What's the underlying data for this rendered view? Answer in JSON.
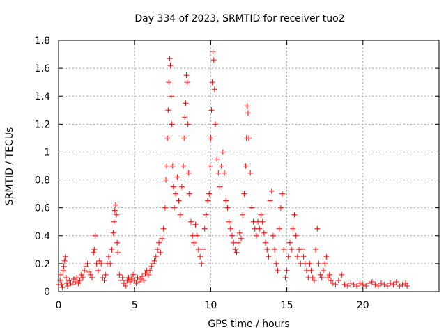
{
  "chart_data": {
    "type": "scatter",
    "title": "Day 334 of 2023, SRMTID for receiver tuo2",
    "xlabel": "GPS time / hours",
    "ylabel": "SRMTID / TECUs",
    "xlim": [
      0,
      25
    ],
    "ylim": [
      0,
      1.8
    ],
    "xticks": [
      0,
      5,
      10,
      15,
      20
    ],
    "xtick_labels": [
      "0",
      "5",
      "10",
      "15",
      "20"
    ],
    "yticks": [
      0,
      0.2,
      0.4,
      0.6,
      0.8,
      1.0,
      1.2,
      1.4,
      1.6,
      1.8
    ],
    "ytick_labels": [
      "0",
      "0.2",
      "0.4",
      "0.6",
      "0.8",
      "1",
      "1.2",
      "1.4",
      "1.6",
      "1.8"
    ],
    "grid": true,
    "marker": "plus",
    "series": [
      {
        "name": "SRMTID",
        "color": "#ff0000",
        "points": [
          [
            0.0,
            0.05
          ],
          [
            0.1,
            0.08
          ],
          [
            0.15,
            0.12
          ],
          [
            0.2,
            0.05
          ],
          [
            0.25,
            0.03
          ],
          [
            0.3,
            0.15
          ],
          [
            0.35,
            0.18
          ],
          [
            0.4,
            0.22
          ],
          [
            0.45,
            0.25
          ],
          [
            0.5,
            0.1
          ],
          [
            0.55,
            0.06
          ],
          [
            0.6,
            0.04
          ],
          [
            0.7,
            0.08
          ],
          [
            0.8,
            0.06
          ],
          [
            0.9,
            0.05
          ],
          [
            1.0,
            0.09
          ],
          [
            1.1,
            0.07
          ],
          [
            1.2,
            0.1
          ],
          [
            1.3,
            0.06
          ],
          [
            1.4,
            0.08
          ],
          [
            1.5,
            0.12
          ],
          [
            1.6,
            0.1
          ],
          [
            1.7,
            0.15
          ],
          [
            1.8,
            0.18
          ],
          [
            1.9,
            0.2
          ],
          [
            2.0,
            0.14
          ],
          [
            2.1,
            0.12
          ],
          [
            2.2,
            0.1
          ],
          [
            2.3,
            0.28
          ],
          [
            2.35,
            0.3
          ],
          [
            2.4,
            0.4
          ],
          [
            2.5,
            0.2
          ],
          [
            2.6,
            0.15
          ],
          [
            2.7,
            0.22
          ],
          [
            2.8,
            0.2
          ],
          [
            2.9,
            0.1
          ],
          [
            3.0,
            0.08
          ],
          [
            3.1,
            0.12
          ],
          [
            3.2,
            0.2
          ],
          [
            3.3,
            0.25
          ],
          [
            3.4,
            0.2
          ],
          [
            3.5,
            0.3
          ],
          [
            3.6,
            0.42
          ],
          [
            3.65,
            0.5
          ],
          [
            3.7,
            0.58
          ],
          [
            3.75,
            0.62
          ],
          [
            3.8,
            0.55
          ],
          [
            3.85,
            0.35
          ],
          [
            3.9,
            0.28
          ],
          [
            4.0,
            0.12
          ],
          [
            4.1,
            0.08
          ],
          [
            4.2,
            0.1
          ],
          [
            4.3,
            0.06
          ],
          [
            4.4,
            0.04
          ],
          [
            4.5,
            0.08
          ],
          [
            4.6,
            0.1
          ],
          [
            4.7,
            0.07
          ],
          [
            4.8,
            0.09
          ],
          [
            4.9,
            0.12
          ],
          [
            5.0,
            0.08
          ],
          [
            5.1,
            0.06
          ],
          [
            5.2,
            0.1
          ],
          [
            5.3,
            0.07
          ],
          [
            5.4,
            0.09
          ],
          [
            5.5,
            0.11
          ],
          [
            5.6,
            0.08
          ],
          [
            5.7,
            0.13
          ],
          [
            5.8,
            0.15
          ],
          [
            5.9,
            0.12
          ],
          [
            6.0,
            0.15
          ],
          [
            6.1,
            0.18
          ],
          [
            6.2,
            0.2
          ],
          [
            6.3,
            0.22
          ],
          [
            6.4,
            0.25
          ],
          [
            6.5,
            0.3
          ],
          [
            6.6,
            0.35
          ],
          [
            6.7,
            0.28
          ],
          [
            6.8,
            0.38
          ],
          [
            6.9,
            0.45
          ],
          [
            7.0,
            0.6
          ],
          [
            7.05,
            0.8
          ],
          [
            7.1,
            0.9
          ],
          [
            7.15,
            1.1
          ],
          [
            7.2,
            1.3
          ],
          [
            7.25,
            1.5
          ],
          [
            7.3,
            1.67
          ],
          [
            7.35,
            1.62
          ],
          [
            7.4,
            1.4
          ],
          [
            7.45,
            1.2
          ],
          [
            7.5,
            0.9
          ],
          [
            7.55,
            0.75
          ],
          [
            7.6,
            0.6
          ],
          [
            7.7,
            0.7
          ],
          [
            7.8,
            0.82
          ],
          [
            7.9,
            0.65
          ],
          [
            8.0,
            0.55
          ],
          [
            8.1,
            0.75
          ],
          [
            8.2,
            0.9
          ],
          [
            8.25,
            1.1
          ],
          [
            8.3,
            1.25
          ],
          [
            8.35,
            1.35
          ],
          [
            8.4,
            1.55
          ],
          [
            8.45,
            1.5
          ],
          [
            8.5,
            1.2
          ],
          [
            8.55,
            0.85
          ],
          [
            8.6,
            0.7
          ],
          [
            8.7,
            0.5
          ],
          [
            8.8,
            0.4
          ],
          [
            8.9,
            0.35
          ],
          [
            9.0,
            0.48
          ],
          [
            9.1,
            0.4
          ],
          [
            9.2,
            0.3
          ],
          [
            9.3,
            0.25
          ],
          [
            9.4,
            0.2
          ],
          [
            9.5,
            0.3
          ],
          [
            9.6,
            0.45
          ],
          [
            9.7,
            0.55
          ],
          [
            9.8,
            0.65
          ],
          [
            9.9,
            0.7
          ],
          [
            9.95,
            0.9
          ],
          [
            10.0,
            1.1
          ],
          [
            10.05,
            1.3
          ],
          [
            10.1,
            1.5
          ],
          [
            10.15,
            1.72
          ],
          [
            10.2,
            1.66
          ],
          [
            10.25,
            1.45
          ],
          [
            10.3,
            1.2
          ],
          [
            10.4,
            0.95
          ],
          [
            10.5,
            0.85
          ],
          [
            10.6,
            0.75
          ],
          [
            10.7,
            0.9
          ],
          [
            10.8,
            1.0
          ],
          [
            10.9,
            0.85
          ],
          [
            11.0,
            0.65
          ],
          [
            11.1,
            0.6
          ],
          [
            11.2,
            0.5
          ],
          [
            11.3,
            0.45
          ],
          [
            11.4,
            0.4
          ],
          [
            11.5,
            0.35
          ],
          [
            11.6,
            0.3
          ],
          [
            11.7,
            0.28
          ],
          [
            11.8,
            0.35
          ],
          [
            11.9,
            0.42
          ],
          [
            12.0,
            0.38
          ],
          [
            12.1,
            0.55
          ],
          [
            12.2,
            0.7
          ],
          [
            12.3,
            0.9
          ],
          [
            12.35,
            1.1
          ],
          [
            12.4,
            1.33
          ],
          [
            12.45,
            1.28
          ],
          [
            12.5,
            1.1
          ],
          [
            12.6,
            0.85
          ],
          [
            12.7,
            0.6
          ],
          [
            12.8,
            0.5
          ],
          [
            12.9,
            0.45
          ],
          [
            13.0,
            0.4
          ],
          [
            13.1,
            0.5
          ],
          [
            13.2,
            0.45
          ],
          [
            13.3,
            0.55
          ],
          [
            13.4,
            0.5
          ],
          [
            13.5,
            0.42
          ],
          [
            13.6,
            0.35
          ],
          [
            13.7,
            0.3
          ],
          [
            13.8,
            0.25
          ],
          [
            13.9,
            0.65
          ],
          [
            14.0,
            0.72
          ],
          [
            14.1,
            0.4
          ],
          [
            14.2,
            0.3
          ],
          [
            14.3,
            0.2
          ],
          [
            14.4,
            0.15
          ],
          [
            14.5,
            0.45
          ],
          [
            14.6,
            0.6
          ],
          [
            14.7,
            0.7
          ],
          [
            14.8,
            0.3
          ],
          [
            14.9,
            0.1
          ],
          [
            15.0,
            0.15
          ],
          [
            15.1,
            0.25
          ],
          [
            15.2,
            0.35
          ],
          [
            15.3,
            0.3
          ],
          [
            15.4,
            0.45
          ],
          [
            15.5,
            0.55
          ],
          [
            15.6,
            0.4
          ],
          [
            15.7,
            0.25
          ],
          [
            15.8,
            0.3
          ],
          [
            15.9,
            0.2
          ],
          [
            16.0,
            0.3
          ],
          [
            16.1,
            0.25
          ],
          [
            16.2,
            0.2
          ],
          [
            16.3,
            0.15
          ],
          [
            16.4,
            0.1
          ],
          [
            16.5,
            0.2
          ],
          [
            16.6,
            0.15
          ],
          [
            16.7,
            0.1
          ],
          [
            16.8,
            0.08
          ],
          [
            16.9,
            0.3
          ],
          [
            17.0,
            0.45
          ],
          [
            17.1,
            0.2
          ],
          [
            17.2,
            0.12
          ],
          [
            17.3,
            0.1
          ],
          [
            17.4,
            0.15
          ],
          [
            17.5,
            0.2
          ],
          [
            17.6,
            0.25
          ],
          [
            17.7,
            0.1
          ],
          [
            17.8,
            0.12
          ],
          [
            17.9,
            0.08
          ],
          [
            18.0,
            0.06
          ],
          [
            18.2,
            0.05
          ],
          [
            18.4,
            0.08
          ],
          [
            18.6,
            0.12
          ],
          [
            18.8,
            0.05
          ],
          [
            19.0,
            0.04
          ],
          [
            19.2,
            0.06
          ],
          [
            19.4,
            0.05
          ],
          [
            19.6,
            0.04
          ],
          [
            19.8,
            0.06
          ],
          [
            20.0,
            0.05
          ],
          [
            20.2,
            0.04
          ],
          [
            20.4,
            0.06
          ],
          [
            20.6,
            0.07
          ],
          [
            20.8,
            0.05
          ],
          [
            21.0,
            0.04
          ],
          [
            21.2,
            0.06
          ],
          [
            21.4,
            0.05
          ],
          [
            21.6,
            0.04
          ],
          [
            21.8,
            0.06
          ],
          [
            22.0,
            0.05
          ],
          [
            22.2,
            0.07
          ],
          [
            22.4,
            0.04
          ],
          [
            22.6,
            0.05
          ],
          [
            22.8,
            0.06
          ],
          [
            22.9,
            0.04
          ]
        ]
      }
    ]
  }
}
